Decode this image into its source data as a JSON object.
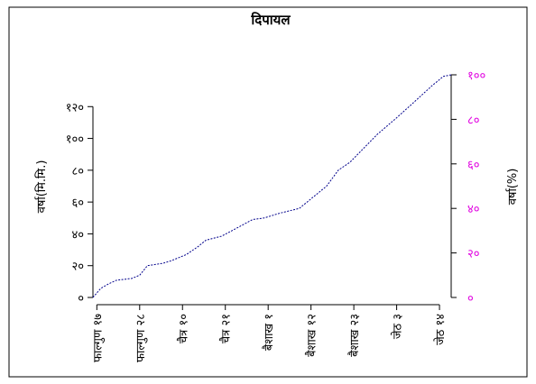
{
  "chart_data": {
    "type": "line",
    "title": "दिपायल",
    "y_label": "वर्षा(मि.मि.)",
    "y2_label": "वर्षा(%)",
    "x": [
      0,
      2,
      4,
      6,
      10,
      12,
      14,
      18,
      20,
      24,
      27,
      29,
      33,
      38,
      41,
      44,
      48,
      53,
      56,
      60,
      63,
      66,
      70,
      73,
      78,
      83,
      87,
      90,
      92
    ],
    "series": [
      {
        "name": "वर्षा",
        "color": "#00008b",
        "values": [
          0,
          5.7,
          8.5,
          10.8,
          12,
          14,
          20,
          21.5,
          23,
          27,
          32,
          36,
          38.5,
          45,
          49,
          50,
          53,
          56,
          62,
          70,
          80,
          85,
          95,
          102.5,
          113,
          124,
          133,
          139,
          140
        ]
      }
    ],
    "xlim": [
      0,
      92
    ],
    "xticks": [
      {
        "value": 1,
        "label": "फाल्गुण १७"
      },
      {
        "value": 12,
        "label": "फाल्गुण २८"
      },
      {
        "value": 23,
        "label": "चैत्र १०"
      },
      {
        "value": 34,
        "label": "चैत्र २१"
      },
      {
        "value": 45,
        "label": "बैशाख १"
      },
      {
        "value": 56,
        "label": "बैशाख १२"
      },
      {
        "value": 67,
        "label": "बैशाख २३"
      },
      {
        "value": 78,
        "label": "जेठ ३"
      },
      {
        "value": 89,
        "label": "जेठ १४"
      }
    ],
    "ylim": [
      0,
      140
    ],
    "yticks": [
      {
        "value": 0,
        "label": "०"
      },
      {
        "value": 20,
        "label": "२०"
      },
      {
        "value": 40,
        "label": "४०"
      },
      {
        "value": 60,
        "label": "६०"
      },
      {
        "value": 80,
        "label": "८०"
      },
      {
        "value": 100,
        "label": "१००"
      },
      {
        "value": 120,
        "label": "१२०"
      }
    ],
    "y2lim": [
      0,
      100
    ],
    "y2ticks": [
      {
        "value": 0,
        "label": "०"
      },
      {
        "value": 20,
        "label": "२०"
      },
      {
        "value": 40,
        "label": "४०"
      },
      {
        "value": 60,
        "label": "६०"
      },
      {
        "value": 80,
        "label": "८०"
      },
      {
        "value": 100,
        "label": "१००"
      }
    ],
    "y2_color": "#e000e0"
  }
}
